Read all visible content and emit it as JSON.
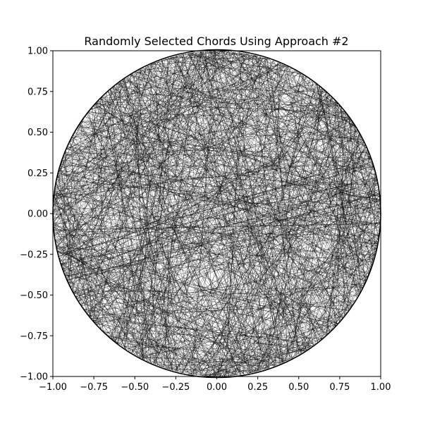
{
  "chart_data": {
    "type": "line",
    "title": "Randomly Selected Chords Using Approach #2",
    "xlabel": "",
    "ylabel": "",
    "xlim": [
      -1.0,
      1.0
    ],
    "ylim": [
      -1.0,
      1.0
    ],
    "xticks": [
      "−1.00",
      "−0.75",
      "−0.50",
      "−0.25",
      "0.00",
      "0.25",
      "0.50",
      "0.75",
      "1.00"
    ],
    "yticks": [
      "−1.00",
      "−0.75",
      "−0.50",
      "−0.25",
      "0.00",
      "0.25",
      "0.50",
      "0.75",
      "1.00"
    ],
    "xtick_values": [
      -1.0,
      -0.75,
      -0.5,
      -0.25,
      0.0,
      0.25,
      0.5,
      0.75,
      1.0
    ],
    "ytick_values": [
      -1.0,
      -0.75,
      -0.5,
      -0.25,
      0.0,
      0.25,
      0.5,
      0.75,
      1.0
    ],
    "grid": false,
    "circle": {
      "center": [
        0.0,
        0.0
      ],
      "radius": 1.0,
      "color": "#000000"
    },
    "chords": {
      "count": 1000,
      "color": "#000000",
      "description_of_method": "random radius, random point on radius, chord perpendicular to radius"
    }
  }
}
